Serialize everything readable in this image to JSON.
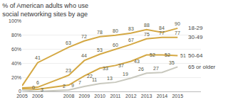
{
  "chart_data": {
    "type": "line",
    "title": "% of American adults who use",
    "subtitle": "social networking sites by age",
    "x": [
      2005,
      2006,
      2008,
      2009,
      2010,
      2011,
      2012,
      2013,
      2014,
      2015
    ],
    "series": [
      {
        "name": "18-29",
        "color": "#d4a843",
        "values": [
          8,
          41,
          63,
          72,
          78,
          80,
          83,
          88,
          84,
          90
        ],
        "value_labels": [
          null,
          "41",
          "63",
          "72",
          "78",
          "80",
          "83",
          "88",
          "84",
          "90"
        ]
      },
      {
        "name": "30-49",
        "color": "#d4a843",
        "values": [
          5,
          6,
          23,
          44,
          53,
          60,
          67,
          75,
          77,
          77
        ],
        "value_labels": [
          null,
          "6",
          "23",
          "44",
          "53",
          "60",
          "67",
          "75",
          "77",
          "77"
        ]
      },
      {
        "name": "50-64",
        "color": "#d4a843",
        "values": [
          4,
          3,
          9,
          22,
          33,
          37,
          43,
          52,
          52,
          51
        ],
        "value_labels": [
          null,
          "3",
          "9",
          "22",
          "33",
          "37",
          "43",
          "52",
          "52",
          "51"
        ]
      },
      {
        "name": "65 or older",
        "color": "#c8c8be",
        "values": [
          2,
          0,
          2,
          7,
          11,
          13,
          19,
          26,
          27,
          35
        ],
        "value_labels": [
          null,
          "0",
          "2",
          "7",
          "11",
          "13",
          "19",
          "26",
          "27",
          "35"
        ]
      }
    ],
    "xlim": [
      2005,
      2016.5
    ],
    "xticks": [
      2005,
      2006,
      2008,
      2009,
      2010,
      2011,
      2012,
      2013,
      2014,
      2015
    ],
    "ylim": [
      0,
      100
    ],
    "yticks": [
      0,
      {
        "value": 20,
        "label": "20%"
      },
      {
        "value": 40,
        "label": "40%"
      },
      {
        "value": 60,
        "label": "60%"
      },
      {
        "value": 80,
        "label": "80%"
      },
      {
        "value": 100,
        "label": "100%"
      }
    ],
    "grid": true,
    "data_labels": true
  }
}
